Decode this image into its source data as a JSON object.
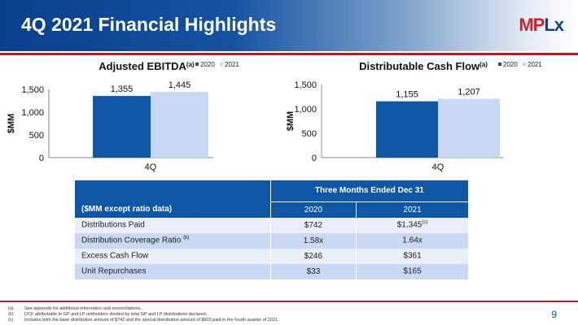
{
  "header": {
    "title": "4Q 2021 Financial Highlights",
    "logo": "MPLX"
  },
  "colors": {
    "s2020": "#0f57a5",
    "s2021": "#c9d8f5"
  },
  "chart_data": [
    {
      "type": "bar",
      "title": "Adjusted EBITDA",
      "title_sup": "(a)",
      "ylabel": "$MM",
      "categories": [
        "4Q"
      ],
      "ylim": [
        0,
        1500
      ],
      "yticks": [
        "0",
        "500",
        "1,000",
        "1,500"
      ],
      "legend": [
        "2020",
        "2021"
      ],
      "legend_position": "top-right",
      "series": [
        {
          "name": "2020",
          "values": [
            1355
          ],
          "labels": [
            "1,355"
          ]
        },
        {
          "name": "2021",
          "values": [
            1445
          ],
          "labels": [
            "1,445"
          ]
        }
      ]
    },
    {
      "type": "bar",
      "title": "Distributable Cash Flow",
      "title_sup": "(a)",
      "ylabel": "$MM",
      "categories": [
        "4Q"
      ],
      "ylim": [
        0,
        1500
      ],
      "yticks": [
        "0",
        "500",
        "1,000",
        "1,500"
      ],
      "legend": [
        "2020",
        "2021"
      ],
      "legend_position": "top-right",
      "series": [
        {
          "name": "2020",
          "values": [
            1155
          ],
          "labels": [
            "1,155"
          ]
        },
        {
          "name": "2021",
          "values": [
            1207
          ],
          "labels": [
            "1,207"
          ]
        }
      ]
    }
  ],
  "table": {
    "period": "Three Months Ended Dec 31",
    "unit_label": "($MM except ratio data)",
    "years": [
      "2020",
      "2021"
    ],
    "rows": [
      {
        "label": "Distributions Paid",
        "sup": "",
        "v2020": "$742",
        "v2021": "$1,345",
        "v2021_sup": "(c)"
      },
      {
        "label": "Distribution Coverage Ratio ",
        "sup": "(b)",
        "v2020": "1.58x",
        "v2021": "1.64x",
        "v2021_sup": ""
      },
      {
        "label": "Excess Cash Flow",
        "sup": "",
        "v2020": "$246",
        "v2021": "$361",
        "v2021_sup": ""
      },
      {
        "label": "Unit Repurchases",
        "sup": "",
        "v2020": "$33",
        "v2021": "$165",
        "v2021_sup": ""
      }
    ]
  },
  "footnotes": [
    {
      "key": "(a)",
      "text": "See appendix for additional information and reconciliations."
    },
    {
      "key": "(b)",
      "text": "DCF attributable to GP and LP unitholders divided by total GP and LP distributions declared."
    },
    {
      "key": "(c)",
      "text": "Includes both the base distribution amount of $742 and the special distribution amount of $603 paid in the fourth quarter of 2021."
    }
  ],
  "page_number": "9"
}
